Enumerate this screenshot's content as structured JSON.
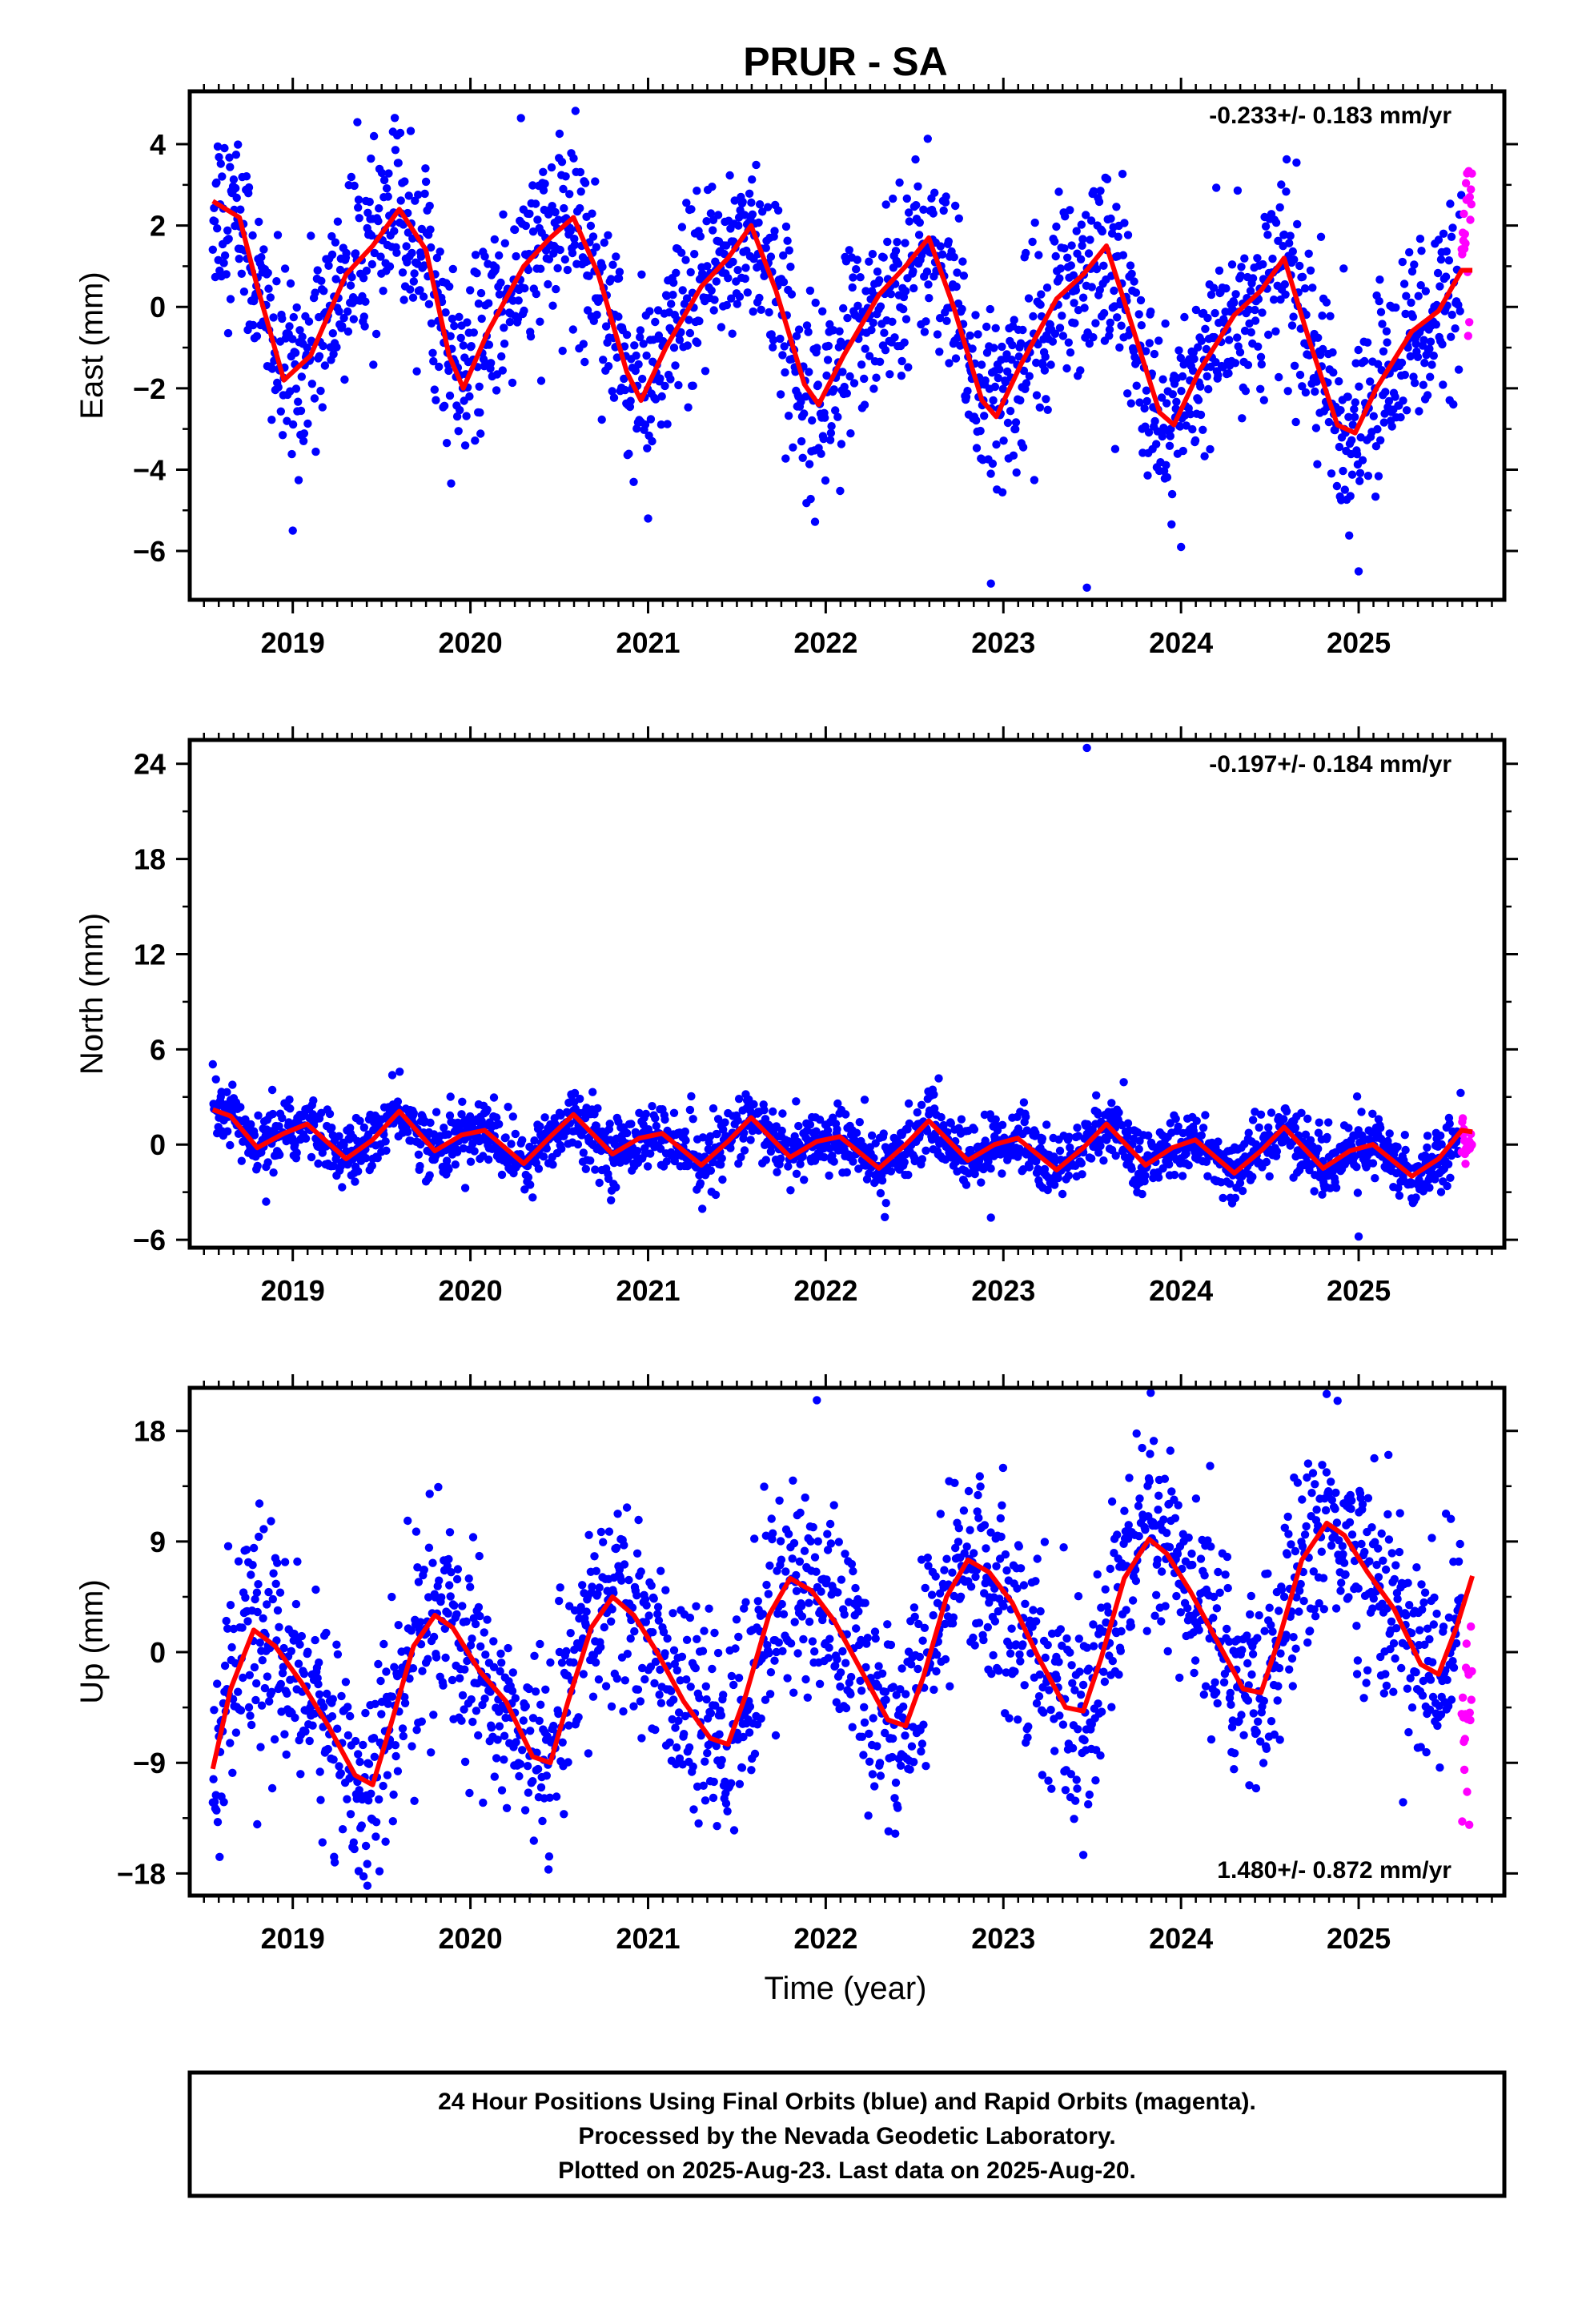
{
  "title": "PRUR - SA",
  "xlabel": "Time (year)",
  "footer": {
    "line1": "24 Hour Positions Using Final Orbits (blue) and Rapid Orbits (magenta).",
    "line2": "Processed by the Nevada Geodetic Laboratory.",
    "line3": "Plotted on 2025-Aug-23. Last data on 2025-Aug-20."
  },
  "colors": {
    "final": "#0000ff",
    "rapid": "#ff00ff",
    "model": "#ff0000",
    "axes": "#000000"
  },
  "chart_data": [
    {
      "type": "scatter",
      "ylabel": "East (mm)",
      "rate": "-0.233+/- 0.183 mm/yr",
      "xlim": [
        2018.42,
        2025.82
      ],
      "ylim": [
        -7.2,
        5.3
      ],
      "yticks": [
        -6,
        -4,
        -2,
        0,
        2,
        4
      ],
      "ytick_labels": [
        "−6",
        "−4",
        "−2",
        "0",
        "2",
        "4"
      ],
      "xticks": [
        2019,
        2020,
        2021,
        2022,
        2023,
        2024,
        2025
      ],
      "xtick_labels": [
        "2019",
        "2020",
        "2021",
        "2022",
        "2023",
        "2024",
        "2025"
      ],
      "data_start": 2018.55,
      "data_end": 2025.64,
      "rapid_start": 2025.58,
      "model_points": [
        [
          2018.55,
          2.6
        ],
        [
          2018.7,
          2.2
        ],
        [
          2018.8,
          0.5
        ],
        [
          2018.95,
          -1.8
        ],
        [
          2019.1,
          -1.2
        ],
        [
          2019.3,
          0.8
        ],
        [
          2019.45,
          1.5
        ],
        [
          2019.6,
          2.4
        ],
        [
          2019.75,
          1.4
        ],
        [
          2019.88,
          -1.2
        ],
        [
          2019.96,
          -2.0
        ],
        [
          2020.1,
          -0.6
        ],
        [
          2020.3,
          1.0
        ],
        [
          2020.45,
          1.7
        ],
        [
          2020.58,
          2.2
        ],
        [
          2020.72,
          0.8
        ],
        [
          2020.88,
          -1.6
        ],
        [
          2020.96,
          -2.3
        ],
        [
          2021.1,
          -1.0
        ],
        [
          2021.3,
          0.5
        ],
        [
          2021.45,
          1.2
        ],
        [
          2021.58,
          2.0
        ],
        [
          2021.72,
          0.4
        ],
        [
          2021.88,
          -1.9
        ],
        [
          2021.96,
          -2.4
        ],
        [
          2022.1,
          -1.2
        ],
        [
          2022.3,
          0.3
        ],
        [
          2022.45,
          1.0
        ],
        [
          2022.58,
          1.7
        ],
        [
          2022.72,
          0.0
        ],
        [
          2022.88,
          -2.3
        ],
        [
          2022.96,
          -2.7
        ],
        [
          2023.1,
          -1.4
        ],
        [
          2023.3,
          0.2
        ],
        [
          2023.45,
          0.8
        ],
        [
          2023.58,
          1.5
        ],
        [
          2023.72,
          -0.4
        ],
        [
          2023.88,
          -2.6
        ],
        [
          2023.96,
          -2.9
        ],
        [
          2024.1,
          -1.6
        ],
        [
          2024.3,
          -0.2
        ],
        [
          2024.45,
          0.4
        ],
        [
          2024.58,
          1.2
        ],
        [
          2024.72,
          -0.8
        ],
        [
          2024.88,
          -2.9
        ],
        [
          2024.98,
          -3.1
        ],
        [
          2025.1,
          -2.0
        ],
        [
          2025.3,
          -0.6
        ],
        [
          2025.45,
          -0.1
        ],
        [
          2025.58,
          0.9
        ],
        [
          2025.64,
          0.9
        ]
      ],
      "seasonal": {
        "amp1": 2.0,
        "phase1": 0.15,
        "amp2": 0.5,
        "phase2": 0.35,
        "offset": 0.0,
        "trend": -0.233,
        "noise": 1.15,
        "rapid_offset": 0.6
      },
      "outliers": [
        [
          2019.0,
          -5.5
        ],
        [
          2022.93,
          -6.8
        ],
        [
          2023.47,
          -6.9
        ],
        [
          2021.0,
          -5.2
        ],
        [
          2024.0,
          -5.9
        ],
        [
          2025.0,
          -6.5
        ]
      ]
    },
    {
      "type": "scatter",
      "ylabel": "North (mm)",
      "rate": "-0.197+/- 0.184 mm/yr",
      "xlim": [
        2018.42,
        2025.82
      ],
      "ylim": [
        -6.5,
        25.5
      ],
      "yticks": [
        -6,
        0,
        6,
        12,
        18,
        24
      ],
      "ytick_labels": [
        "−6",
        "0",
        "6",
        "12",
        "18",
        "24"
      ],
      "xticks": [
        2019,
        2020,
        2021,
        2022,
        2023,
        2024,
        2025
      ],
      "xtick_labels": [
        "2019",
        "2020",
        "2021",
        "2022",
        "2023",
        "2024",
        "2025"
      ],
      "data_start": 2018.55,
      "data_end": 2025.64,
      "rapid_start": 2025.58,
      "model_points": [
        [
          2018.55,
          2.2
        ],
        [
          2018.65,
          1.8
        ],
        [
          2018.8,
          -0.2
        ],
        [
          2018.95,
          0.7
        ],
        [
          2019.08,
          1.3
        ],
        [
          2019.3,
          -0.9
        ],
        [
          2019.45,
          0.3
        ],
        [
          2019.6,
          2.1
        ],
        [
          2019.8,
          -0.4
        ],
        [
          2019.95,
          0.6
        ],
        [
          2020.08,
          0.9
        ],
        [
          2020.3,
          -1.2
        ],
        [
          2020.45,
          0.5
        ],
        [
          2020.58,
          1.9
        ],
        [
          2020.8,
          -0.6
        ],
        [
          2020.95,
          0.4
        ],
        [
          2021.08,
          0.7
        ],
        [
          2021.3,
          -1.3
        ],
        [
          2021.45,
          0.2
        ],
        [
          2021.58,
          1.7
        ],
        [
          2021.8,
          -0.8
        ],
        [
          2021.95,
          0.2
        ],
        [
          2022.08,
          0.5
        ],
        [
          2022.3,
          -1.5
        ],
        [
          2022.45,
          0.0
        ],
        [
          2022.58,
          1.5
        ],
        [
          2022.8,
          -1.0
        ],
        [
          2022.95,
          0.0
        ],
        [
          2023.08,
          0.4
        ],
        [
          2023.3,
          -1.6
        ],
        [
          2023.45,
          -0.2
        ],
        [
          2023.58,
          1.3
        ],
        [
          2023.8,
          -1.3
        ],
        [
          2023.95,
          -0.2
        ],
        [
          2024.08,
          0.3
        ],
        [
          2024.3,
          -1.8
        ],
        [
          2024.45,
          -0.4
        ],
        [
          2024.58,
          1.1
        ],
        [
          2024.8,
          -1.5
        ],
        [
          2024.95,
          -0.4
        ],
        [
          2025.08,
          0.0
        ],
        [
          2025.3,
          -2.0
        ],
        [
          2025.45,
          -0.9
        ],
        [
          2025.58,
          0.9
        ],
        [
          2025.64,
          0.8
        ]
      ],
      "seasonal": {
        "amp1": 1.0,
        "phase1": 0.6,
        "amp2": 0.7,
        "phase2": 0.45,
        "offset": 0.3,
        "trend": -0.197,
        "noise": 1.0,
        "rapid_offset": -0.5
      },
      "outliers": [
        [
          2023.47,
          25.0
        ],
        [
          2025.0,
          -5.8
        ],
        [
          2018.85,
          -3.6
        ],
        [
          2022.93,
          -4.6
        ]
      ]
    },
    {
      "type": "scatter",
      "ylabel": "Up (mm)",
      "rate": "1.480+/- 0.872 mm/yr",
      "xlim": [
        2018.42,
        2025.82
      ],
      "ylim": [
        -19.8,
        21.5
      ],
      "yticks": [
        -18,
        -9,
        0,
        9,
        18
      ],
      "ytick_labels": [
        "−18",
        "−9",
        "0",
        "9",
        "18"
      ],
      "xticks": [
        2019,
        2020,
        2021,
        2022,
        2023,
        2024,
        2025
      ],
      "xtick_labels": [
        "2019",
        "2020",
        "2021",
        "2022",
        "2023",
        "2024",
        "2025"
      ],
      "data_start": 2018.55,
      "data_end": 2025.64,
      "rapid_start": 2025.58,
      "model_points": [
        [
          2018.55,
          -9.5
        ],
        [
          2018.65,
          -3.0
        ],
        [
          2018.78,
          1.8
        ],
        [
          2018.9,
          0.5
        ],
        [
          2019.05,
          -2.5
        ],
        [
          2019.2,
          -6.0
        ],
        [
          2019.35,
          -10.0
        ],
        [
          2019.45,
          -10.8
        ],
        [
          2019.55,
          -6.0
        ],
        [
          2019.68,
          0.5
        ],
        [
          2019.8,
          3.0
        ],
        [
          2019.9,
          2.0
        ],
        [
          2020.05,
          -1.5
        ],
        [
          2020.2,
          -4.0
        ],
        [
          2020.35,
          -8.5
        ],
        [
          2020.45,
          -9.0
        ],
        [
          2020.55,
          -4.0
        ],
        [
          2020.68,
          2.0
        ],
        [
          2020.8,
          4.5
        ],
        [
          2020.92,
          3.0
        ],
        [
          2021.05,
          0.0
        ],
        [
          2021.2,
          -4.0
        ],
        [
          2021.35,
          -7.0
        ],
        [
          2021.45,
          -7.5
        ],
        [
          2021.55,
          -3.5
        ],
        [
          2021.68,
          3.0
        ],
        [
          2021.8,
          6.0
        ],
        [
          2021.92,
          5.0
        ],
        [
          2022.05,
          2.5
        ],
        [
          2022.2,
          -1.5
        ],
        [
          2022.35,
          -5.5
        ],
        [
          2022.45,
          -6.0
        ],
        [
          2022.55,
          -2.0
        ],
        [
          2022.68,
          4.5
        ],
        [
          2022.8,
          7.5
        ],
        [
          2022.92,
          6.5
        ],
        [
          2023.05,
          4.0
        ],
        [
          2023.2,
          -0.5
        ],
        [
          2023.35,
          -4.5
        ],
        [
          2023.45,
          -4.8
        ],
        [
          2023.55,
          -0.5
        ],
        [
          2023.68,
          6.0
        ],
        [
          2023.82,
          9.2
        ],
        [
          2023.92,
          8.0
        ],
        [
          2024.05,
          5.0
        ],
        [
          2024.2,
          1.0
        ],
        [
          2024.35,
          -3.0
        ],
        [
          2024.45,
          -3.3
        ],
        [
          2024.55,
          1.0
        ],
        [
          2024.68,
          7.5
        ],
        [
          2024.82,
          10.5
        ],
        [
          2024.92,
          9.5
        ],
        [
          2025.05,
          6.5
        ],
        [
          2025.2,
          3.5
        ],
        [
          2025.35,
          -1.0
        ],
        [
          2025.45,
          -1.8
        ],
        [
          2025.55,
          2.0
        ],
        [
          2025.64,
          6.2
        ]
      ],
      "seasonal": {
        "amp1": 6.0,
        "phase1": 0.82,
        "amp2": 1.2,
        "phase2": 0.1,
        "offset": -3.8,
        "trend": 1.48,
        "noise": 4.2,
        "rapid_offset": -8.0
      },
      "outliers": [
        [
          2019.42,
          -19.0
        ],
        [
          2021.95,
          20.5
        ],
        [
          2024.82,
          21.0
        ],
        [
          2018.8,
          -14.0
        ],
        [
          2023.45,
          -16.5
        ]
      ]
    }
  ]
}
